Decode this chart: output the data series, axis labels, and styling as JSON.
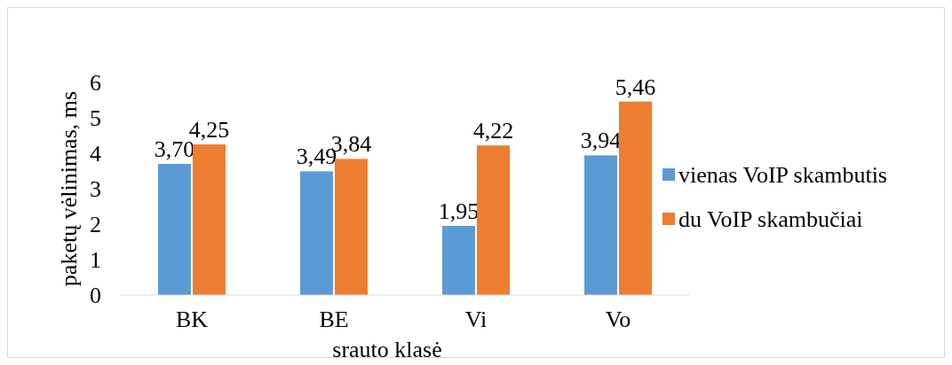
{
  "chart_data": {
    "type": "bar",
    "categories": [
      "BK",
      "BE",
      "Vi",
      "Vo"
    ],
    "series": [
      {
        "name": "vienas VoIP skambutis",
        "color": "#5b9bd5",
        "values": [
          3.7,
          3.49,
          1.95,
          3.94
        ],
        "value_labels": [
          "3,70",
          "3,49",
          "1,95",
          "3,94"
        ]
      },
      {
        "name": "du VoIP skambučiai",
        "color": "#ed7d31",
        "values": [
          4.25,
          3.84,
          4.22,
          5.46
        ],
        "value_labels": [
          "4,25",
          "3,84",
          "4,22",
          "5,46"
        ]
      }
    ],
    "xlabel": "srauto klasė",
    "ylabel": "paketų vėlinimas, ms",
    "ylim": [
      0,
      6
    ],
    "yticks": [
      0,
      1,
      2,
      3,
      4,
      5,
      6
    ],
    "grid": false,
    "legend": "right"
  }
}
